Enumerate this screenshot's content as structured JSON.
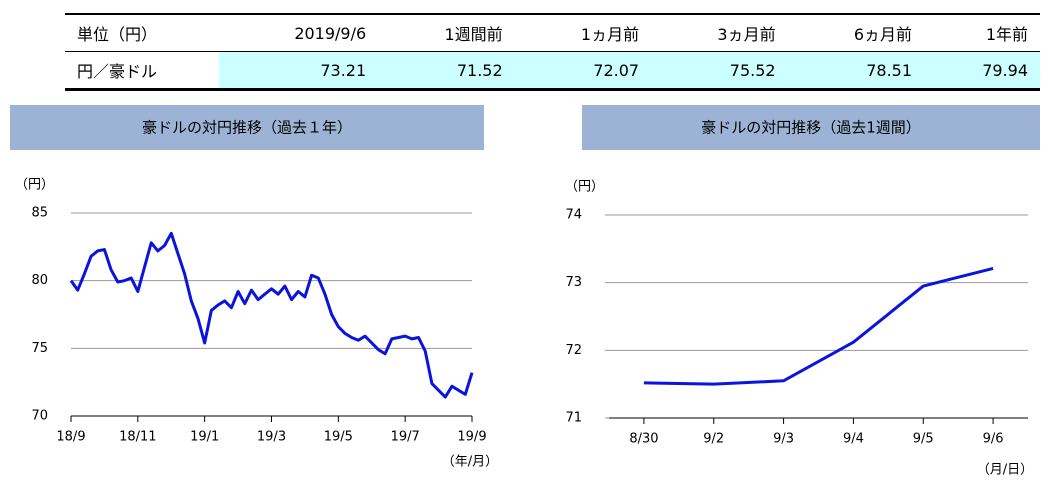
{
  "table": {
    "header": [
      "単位（円）",
      "2019/9/6",
      "1週間前",
      "1ヵ月前",
      "3ヵ月前",
      "6ヵ月前",
      "1年前"
    ],
    "rows": [
      [
        "円／豪ドル",
        "73.21",
        "71.52",
        "72.07",
        "75.52",
        "78.51",
        "79.94"
      ]
    ]
  },
  "chart_data": [
    {
      "type": "line",
      "title": "豪ドルの対円推移（過去１年）",
      "y_label": "（円）",
      "x_label": "（年/月）",
      "categories": [
        "18/9",
        null,
        null,
        null,
        null,
        null,
        null,
        null,
        null,
        null,
        "18/11",
        null,
        null,
        null,
        null,
        null,
        null,
        null,
        null,
        null,
        "19/1",
        null,
        null,
        null,
        null,
        null,
        null,
        null,
        null,
        null,
        "19/3",
        null,
        null,
        null,
        null,
        null,
        null,
        null,
        null,
        null,
        "19/5",
        null,
        null,
        null,
        null,
        null,
        null,
        null,
        null,
        null,
        "19/7",
        null,
        null,
        null,
        null,
        null,
        null,
        null,
        null,
        null,
        "19/9"
      ],
      "series": [
        {
          "name": "円／豪ドル",
          "color": "#0a14dc",
          "values": [
            80.0,
            79.3,
            80.5,
            81.8,
            82.2,
            82.3,
            80.8,
            79.9,
            80.0,
            80.2,
            79.2,
            81.0,
            82.8,
            82.2,
            82.6,
            83.5,
            82.0,
            80.5,
            78.5,
            77.2,
            75.4,
            77.8,
            78.2,
            78.5,
            78.0,
            79.2,
            78.3,
            79.3,
            78.6,
            79.0,
            79.4,
            79.0,
            79.6,
            78.6,
            79.2,
            78.8,
            80.4,
            80.2,
            79.0,
            77.5,
            76.6,
            76.1,
            75.8,
            75.6,
            75.9,
            75.4,
            74.9,
            74.6,
            75.7,
            75.8,
            75.9,
            75.7,
            75.8,
            74.8,
            72.4,
            71.9,
            71.4,
            72.2,
            71.9,
            71.6,
            73.2
          ]
        }
      ],
      "ylim": [
        70,
        85
      ],
      "yticks": [
        70,
        75,
        80,
        85
      ],
      "grid": true
    },
    {
      "type": "line",
      "title": "豪ドルの対円推移（過去1週間）",
      "y_label": "（円）",
      "x_label": "（月/日）",
      "categories": [
        "8/30",
        "9/2",
        "9/3",
        "9/4",
        "9/5",
        "9/6"
      ],
      "series": [
        {
          "name": "円／豪ドル",
          "color": "#0a14dc",
          "values": [
            71.52,
            71.5,
            71.55,
            72.12,
            72.95,
            73.21
          ]
        }
      ],
      "ylim": [
        71,
        74
      ],
      "yticks": [
        71,
        72,
        73,
        74
      ],
      "grid": true
    }
  ]
}
